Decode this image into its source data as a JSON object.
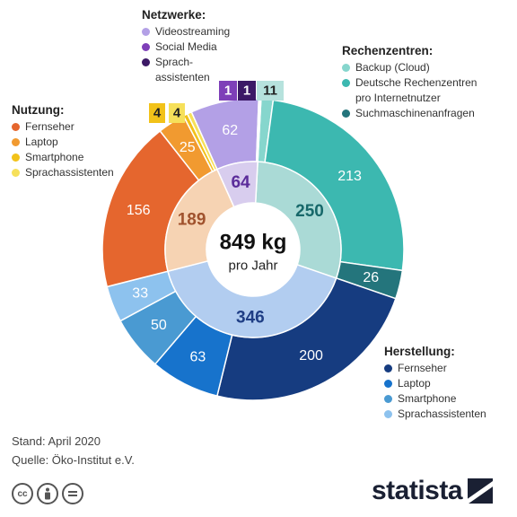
{
  "chart_data": {
    "type": "nested-donut",
    "center": {
      "value": "849 kg",
      "subtitle": "pro Jahr"
    },
    "inner": [
      {
        "label": "Rechenzentren",
        "value": 250,
        "color": "#aadad6",
        "text_color": "#17686a"
      },
      {
        "label": "Herstellung",
        "value": 346,
        "color": "#b2cdf0",
        "text_color": "#1f3e85"
      },
      {
        "label": "Nutzung",
        "value": 189,
        "color": "#f6d3b3",
        "text_color": "#a0522d"
      },
      {
        "label": "Netzwerke",
        "value": 64,
        "color": "#d8cdee",
        "text_color": "#5b2c9a"
      }
    ],
    "outer": [
      {
        "label": "Backup (Cloud)",
        "value": 11,
        "color": "#86d6cd",
        "group": "Rechenzentren"
      },
      {
        "label": "Deutsche Rechenzentren pro Internetnutzer",
        "value": 213,
        "color": "#3cb8b0",
        "group": "Rechenzentren"
      },
      {
        "label": "Suchmaschinenanfragen",
        "value": 26,
        "color": "#24757c",
        "group": "Rechenzentren"
      },
      {
        "label": "Fernseher",
        "value": 200,
        "color": "#163c80",
        "group": "Herstellung"
      },
      {
        "label": "Laptop",
        "value": 63,
        "color": "#1773cc",
        "group": "Herstellung"
      },
      {
        "label": "Smartphone",
        "value": 50,
        "color": "#4a9ad2",
        "group": "Herstellung"
      },
      {
        "label": "Sprachassistenten",
        "value": 33,
        "color": "#8dc2ee",
        "group": "Herstellung"
      },
      {
        "label": "Fernseher",
        "value": 156,
        "color": "#e5662e",
        "group": "Nutzung"
      },
      {
        "label": "Laptop",
        "value": 25,
        "color": "#f19a30",
        "group": "Nutzung"
      },
      {
        "label": "Smartphone",
        "value": 4,
        "color": "#f2c219",
        "group": "Nutzung"
      },
      {
        "label": "Sprachassistenten",
        "value": 4,
        "color": "#f6e05a",
        "group": "Nutzung"
      },
      {
        "label": "Videostreaming",
        "value": 62,
        "color": "#b3a0e6",
        "group": "Netzwerke"
      },
      {
        "label": "Social Media",
        "value": 1,
        "color": "#7e3fb8",
        "group": "Netzwerke"
      },
      {
        "label": "Sprachassistenten",
        "value": 1,
        "color": "#3c1966",
        "group": "Netzwerke"
      }
    ],
    "tags": [
      "4",
      "4",
      "1",
      "1",
      "11"
    ]
  },
  "legends": {
    "netzwerke": {
      "title": "Netzwerke:",
      "items": [
        {
          "label": "Videostreaming",
          "color": "#b3a0e6"
        },
        {
          "label": "Social Media",
          "color": "#7e3fb8"
        },
        {
          "label": "Sprach-\nassistenten",
          "color": "#3c1966"
        }
      ]
    },
    "rechenzentren": {
      "title": "Rechenzentren:",
      "items": [
        {
          "label": "Backup (Cloud)",
          "color": "#86d6cd"
        },
        {
          "label": "Deutsche Rechenzentren\npro Internetnutzer",
          "color": "#3cb8b0"
        },
        {
          "label": "Suchmaschinenanfragen",
          "color": "#24757c"
        }
      ]
    },
    "nutzung": {
      "title": "Nutzung:",
      "items": [
        {
          "label": "Fernseher",
          "color": "#e5662e"
        },
        {
          "label": "Laptop",
          "color": "#f19a30"
        },
        {
          "label": "Smartphone",
          "color": "#f2c219"
        },
        {
          "label": "Sprachassistenten",
          "color": "#f6e05a"
        }
      ]
    },
    "herstellung": {
      "title": "Herstellung:",
      "items": [
        {
          "label": "Fernseher",
          "color": "#163c80"
        },
        {
          "label": "Laptop",
          "color": "#1773cc"
        },
        {
          "label": "Smartphone",
          "color": "#4a9ad2"
        },
        {
          "label": "Sprachassistenten",
          "color": "#8dc2ee"
        }
      ]
    }
  },
  "footer": {
    "stand": "Stand: April 2020",
    "quelle": "Quelle: Öko-Institut e.V."
  },
  "license_icons": [
    "cc-icon",
    "by-icon",
    "nd-icon"
  ],
  "brand": {
    "name": "statista"
  }
}
